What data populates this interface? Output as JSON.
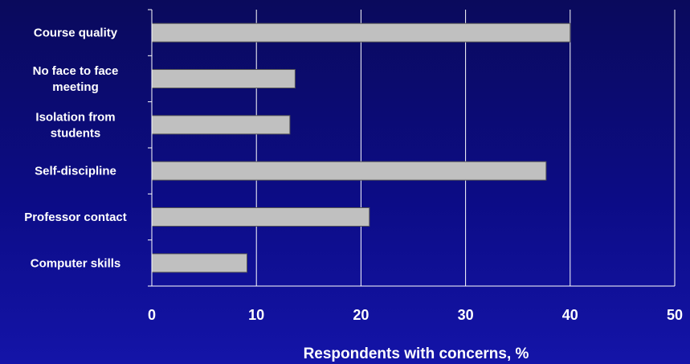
{
  "chart_data": {
    "type": "bar",
    "orientation": "horizontal",
    "categories": [
      [
        "Course quality"
      ],
      [
        "No face to face",
        "meeting"
      ],
      [
        "Isolation from",
        "students"
      ],
      [
        "Self-discipline"
      ],
      [
        "Professor contact"
      ],
      [
        "Computer skills"
      ]
    ],
    "values": [
      40,
      13.7,
      13.2,
      37.7,
      20.8,
      9.1
    ],
    "xlabel": "Respondents with concerns, %",
    "ylabel": "",
    "title": "",
    "xlim": [
      0,
      50
    ],
    "xticks": [
      "0",
      "10",
      "20",
      "30",
      "40",
      "50"
    ],
    "grid": "vertical",
    "legend": "none",
    "colors": {
      "bar_fill": "#c0c0c0",
      "bar_stroke": "#555555",
      "gridline": "#ffffff",
      "text": "#ffffff"
    }
  }
}
